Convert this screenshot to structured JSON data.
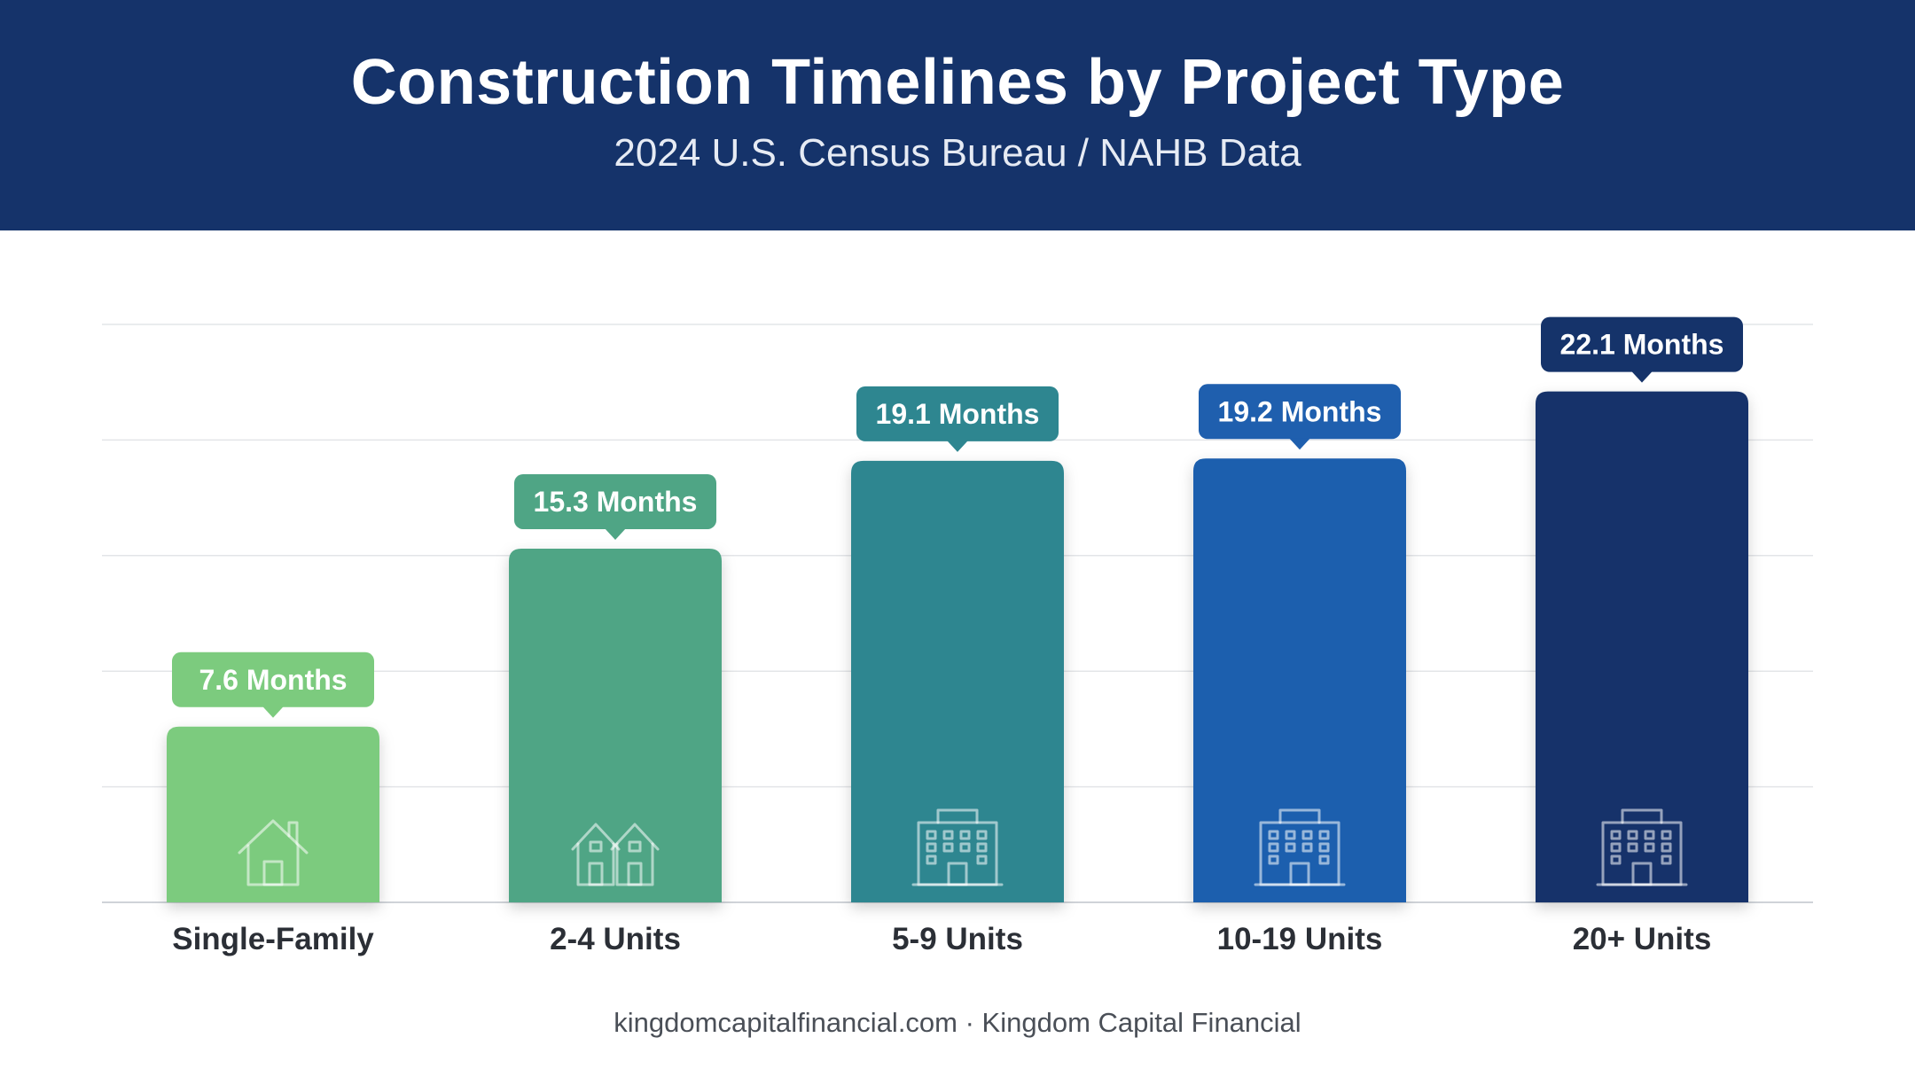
{
  "header": {
    "title": "Construction Timelines by Project Type",
    "subtitle": "2024 U.S. Census Bureau / NAHB Data"
  },
  "footer": {
    "text": "kingdomcapitalfinancial.com · Kingdom Capital Financial"
  },
  "chart_data": {
    "type": "bar",
    "title": "Construction Timelines by Project Type",
    "subtitle": "2024 U.S. Census Bureau / NAHB Data",
    "categories": [
      "Single-Family",
      "2-4 Units",
      "5-9 Units",
      "10-19 Units",
      "20+ Units"
    ],
    "values": [
      7.6,
      15.3,
      19.1,
      19.2,
      22.1
    ],
    "data_labels": [
      "7.6 Months",
      "15.3 Months",
      "19.1 Months",
      "19.2 Months",
      "22.1 Months"
    ],
    "unit": "Months",
    "ylim": [
      0,
      25
    ],
    "grid": true,
    "colors": [
      "#7ccb7e",
      "#4fa585",
      "#2e8690",
      "#1f5fae",
      "#15336a"
    ],
    "icons": [
      "house-icon",
      "duplex-icon",
      "building-icon",
      "building-icon",
      "building-icon"
    ]
  }
}
